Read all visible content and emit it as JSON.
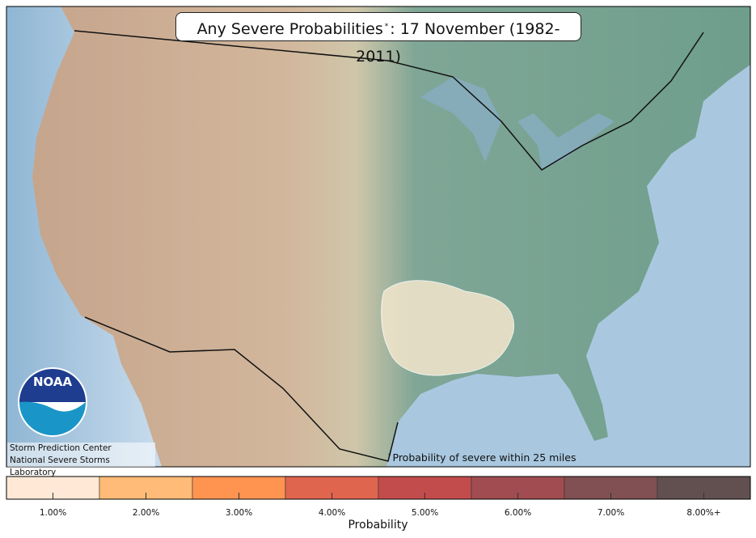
{
  "title": {
    "main": "Any Severe Probabilities",
    "mark": "*",
    "rest": ": 17 November (1982-2011)"
  },
  "footnote": {
    "mark": "*",
    "text": "Probability of severe within 25 miles"
  },
  "credits": {
    "logo": "NOAA",
    "lines": [
      "Storm Prediction Center",
      "National Severe Storms Laboratory"
    ]
  },
  "colorbar": {
    "label": "Probability",
    "bins": [
      {
        "label": "1.00%",
        "color": "#ffe9d6"
      },
      {
        "label": "2.00%",
        "color": "#ffbb77"
      },
      {
        "label": "3.00%",
        "color": "#ff9450"
      },
      {
        "label": "4.00%",
        "color": "#e0654f"
      },
      {
        "label": "5.00%",
        "color": "#c24c4c"
      },
      {
        "label": "6.00%",
        "color": "#a04c50"
      },
      {
        "label": "7.00%",
        "color": "#805052"
      },
      {
        "label": "8.00%+",
        "color": "#625050"
      }
    ]
  }
}
